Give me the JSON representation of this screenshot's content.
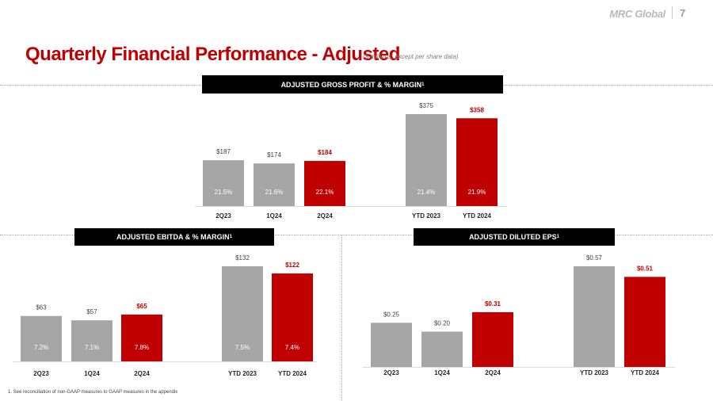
{
  "header": {
    "logo": "MRC Global",
    "page_number": "7",
    "title": "Quarterly Financial Performance - Adjusted",
    "subtitle": "($ millions, except per share data)"
  },
  "colors": {
    "gray": "#a6a6a6",
    "red": "#c00000",
    "title_red": "#c00000",
    "inner_label": "#ffffff"
  },
  "chart_data": [
    {
      "id": "gross-profit",
      "type": "bar",
      "title": "ADJUSTED GROSS PROFIT & % MARGIN",
      "title_superscript": "1",
      "categories": [
        "2Q23",
        "1Q24",
        "2Q24",
        "YTD 2023",
        "YTD 2024"
      ],
      "values": [
        187,
        174,
        184,
        375,
        358
      ],
      "value_labels": [
        "$187",
        "$174",
        "$184",
        "$375",
        "$358"
      ],
      "inner_labels": [
        "21.5%",
        "21.6%",
        "22.1%",
        "21.4%",
        "21.9%"
      ],
      "highlight": [
        false,
        false,
        true,
        false,
        true
      ],
      "ylim": [
        0,
        375
      ]
    },
    {
      "id": "ebitda",
      "type": "bar",
      "title": "ADJUSTED EBITDA & % MARGIN",
      "title_superscript": "1",
      "categories": [
        "2Q23",
        "1Q24",
        "2Q24",
        "YTD 2023",
        "YTD 2024"
      ],
      "values": [
        63,
        57,
        65,
        132,
        122
      ],
      "value_labels": [
        "$63",
        "$57",
        "$65",
        "$132",
        "$122"
      ],
      "inner_labels": [
        "7.2%",
        "7.1%",
        "7.8%",
        "7.5%",
        "7.4%"
      ],
      "highlight": [
        false,
        false,
        true,
        false,
        true
      ],
      "ylim": [
        0,
        132
      ]
    },
    {
      "id": "eps",
      "type": "bar",
      "title": "ADJUSTED DILUTED EPS",
      "title_superscript": "1",
      "categories": [
        "2Q23",
        "1Q24",
        "2Q24",
        "YTD 2023",
        "YTD 2024"
      ],
      "values": [
        0.25,
        0.2,
        0.31,
        0.57,
        0.51
      ],
      "value_labels": [
        "$0.25",
        "$0.20",
        "$0.31",
        "$0.57",
        "$0.51"
      ],
      "inner_labels": [
        "",
        "",
        "",
        "",
        ""
      ],
      "highlight": [
        false,
        false,
        true,
        false,
        true
      ],
      "ylim": [
        0,
        0.57
      ]
    }
  ],
  "footnote": "1.    See reconciliation of non-GAAP measures to GAAP measures in the appendix"
}
